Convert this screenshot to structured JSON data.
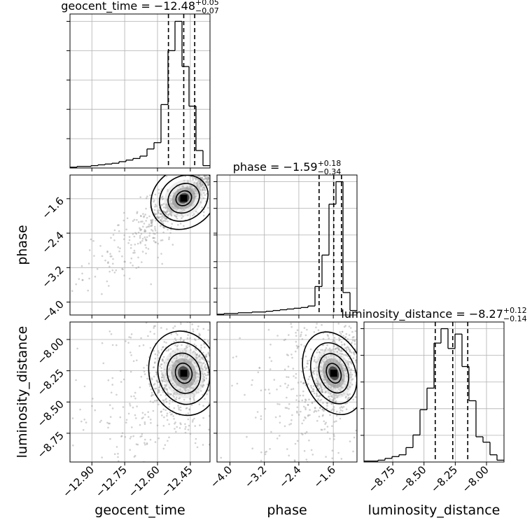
{
  "chart_data": {
    "type": "corner",
    "parameters": [
      {
        "name": "geocent_time",
        "label": "geocent_time",
        "title": {
          "prefix": "geocent_time = −12.48",
          "plus": "+0.05",
          "minus": "−0.07"
        },
        "range": [
          -13.0,
          -12.36
        ],
        "ticks": [
          -12.9,
          -12.75,
          -12.6,
          -12.45
        ],
        "tick_labels": [
          "−12.90",
          "−12.75",
          "−12.60",
          "−12.45"
        ],
        "quantiles": [
          -12.55,
          -12.48,
          -12.43
        ],
        "hist": {
          "edges": [
            -13.0,
            -12.968,
            -12.936,
            -12.904,
            -12.872,
            -12.84,
            -12.808,
            -12.776,
            -12.744,
            -12.712,
            -12.68,
            -12.648,
            -12.616,
            -12.584,
            -12.552,
            -12.52,
            -12.488,
            -12.456,
            -12.424,
            -12.392,
            -12.36
          ],
          "counts": [
            1,
            2,
            2,
            3,
            4,
            5,
            6,
            8,
            10,
            12,
            15,
            24,
            32,
            80,
            148,
            185,
            128,
            78,
            22,
            3
          ]
        }
      },
      {
        "name": "phase",
        "label": "phase",
        "title": {
          "prefix": "phase = −1.59",
          "plus": "+0.18",
          "minus": "−0.34"
        },
        "range": [
          -4.3,
          -1.05
        ],
        "ticks": [
          -4.0,
          -3.2,
          -2.4,
          -1.6
        ],
        "tick_labels": [
          "−4.0",
          "−3.2",
          "−2.4",
          "−1.6"
        ],
        "quantiles": [
          -1.93,
          -1.59,
          -1.41
        ],
        "hist": {
          "edges": [
            -4.3,
            -4.1375,
            -3.975,
            -3.8125,
            -3.65,
            -3.4875,
            -3.325,
            -3.1625,
            -3.0,
            -2.8375,
            -2.675,
            -2.5125,
            -2.35,
            -2.1875,
            -2.025,
            -1.8625,
            -1.7,
            -1.5375,
            -1.375,
            -1.2125,
            -1.05
          ],
          "counts": [
            1,
            2,
            2,
            3,
            3,
            4,
            4,
            5,
            6,
            7,
            8,
            9,
            10,
            12,
            38,
            80,
            148,
            178,
            30,
            6
          ]
        }
      },
      {
        "name": "luminosity_distance",
        "label": "luminosity_distance",
        "title": {
          "prefix": "luminosity_distance = −8.27",
          "plus": "+0.12",
          "minus": "−0.14"
        },
        "range": [
          -8.98,
          -7.86
        ],
        "ticks": [
          -8.75,
          -8.5,
          -8.25,
          -8.0
        ],
        "tick_labels": [
          "−8.75",
          "−8.50",
          "−8.25",
          "−8.00"
        ],
        "quantiles": [
          -8.41,
          -8.27,
          -8.15
        ],
        "hist": {
          "edges": [
            -8.98,
            -8.924,
            -8.868,
            -8.812,
            -8.756,
            -8.7,
            -8.644,
            -8.588,
            -8.532,
            -8.476,
            -8.42,
            -8.364,
            -8.308,
            -8.252,
            -8.196,
            -8.14,
            -8.084,
            -8.028,
            -7.972,
            -7.916,
            -7.86
          ],
          "counts": [
            1,
            1,
            2,
            4,
            6,
            8,
            16,
            30,
            58,
            82,
            132,
            148,
            126,
            142,
            106,
            68,
            28,
            22,
            8,
            2
          ]
        }
      }
    ],
    "pairs": [
      {
        "x": "geocent_time",
        "y": "phase"
      },
      {
        "x": "geocent_time",
        "y": "luminosity_distance"
      },
      {
        "x": "phase",
        "y": "luminosity_distance"
      }
    ],
    "grid": true
  }
}
